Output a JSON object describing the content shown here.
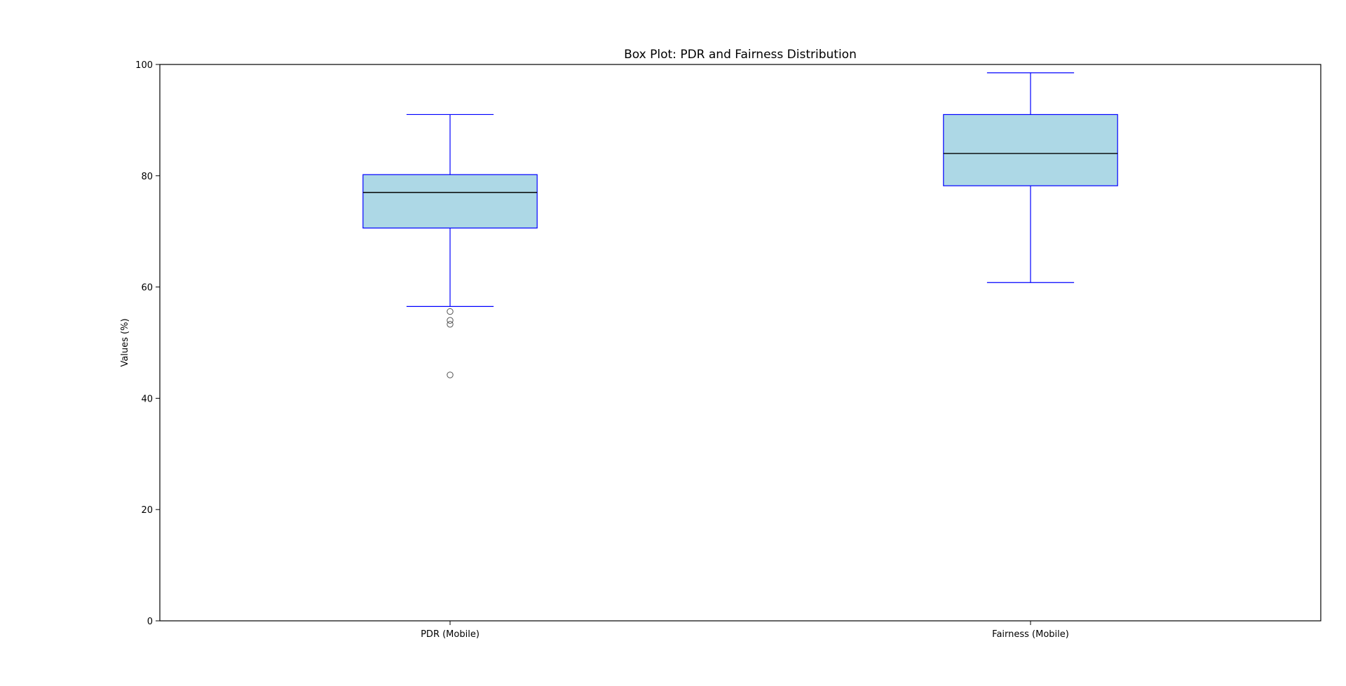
{
  "chart_data": {
    "type": "box",
    "title": "Box Plot: PDR and Fairness Distribution",
    "xlabel": "",
    "ylabel": "Values (%)",
    "ylim": [
      0,
      100
    ],
    "yticks": [
      0,
      20,
      40,
      60,
      80,
      100
    ],
    "grid": false,
    "categories": [
      "PDR (Mobile)",
      "Fairness (Mobile)"
    ],
    "boxes": [
      {
        "label": "PDR (Mobile)",
        "whisker_low": 56.5,
        "q1": 70.6,
        "median": 77.0,
        "q3": 80.2,
        "whisker_high": 91.0,
        "outliers": [
          55.6,
          54.0,
          53.3,
          44.2
        ]
      },
      {
        "label": "Fairness (Mobile)",
        "whisker_low": 60.8,
        "q1": 78.2,
        "median": 84.0,
        "q3": 91.0,
        "whisker_high": 98.5,
        "outliers": []
      }
    ],
    "colors": {
      "box_fill": "#add8e6",
      "box_edge": "#0000ff",
      "whisker": "#0000ff",
      "median": "#000000",
      "outlier_edge": "#555555"
    }
  }
}
